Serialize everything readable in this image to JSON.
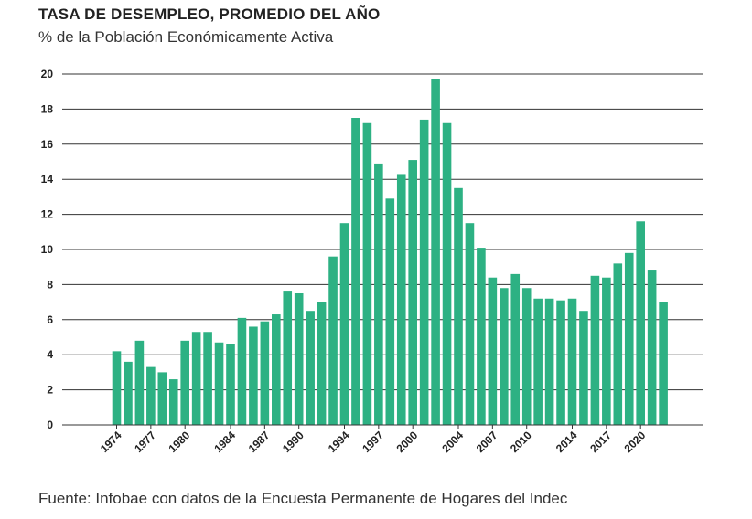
{
  "header": {
    "title": "TASA DE DESEMPLEO, PROMEDIO DEL AÑO",
    "subtitle": "% de la Población Económicamente Activa"
  },
  "footer": {
    "source": "Fuente: Infobae con datos de la Encuesta Permanente de Hogares del Indec"
  },
  "colors": {
    "bar": "#2db183",
    "grid": "#333333",
    "text": "#222222"
  },
  "chart_data": {
    "type": "bar",
    "title": "TASA DE DESEMPLEO, PROMEDIO DEL AÑO",
    "subtitle": "% de la Población Económicamente Activa",
    "xlabel": "",
    "ylabel": "",
    "ylim": [
      0,
      20
    ],
    "yticks": [
      "0",
      "2",
      "4",
      "6",
      "8",
      "10",
      "12",
      "14",
      "16",
      "18",
      "20"
    ],
    "grid": "horizontal",
    "categories": [
      1974,
      1975,
      1976,
      1977,
      1978,
      1979,
      1980,
      1981,
      1982,
      1983,
      1984,
      1985,
      1986,
      1987,
      1988,
      1989,
      1990,
      1991,
      1992,
      1993,
      1994,
      1995,
      1996,
      1997,
      1998,
      1999,
      2000,
      2001,
      2002,
      2003,
      2004,
      2005,
      2006,
      2007,
      2008,
      2009,
      2010,
      2011,
      2012,
      2013,
      2014,
      2015,
      2016,
      2017,
      2018,
      2019,
      2020,
      2021,
      2022
    ],
    "xtick_labels": [
      "1974",
      "1977",
      "1980",
      "1984",
      "1987",
      "1990",
      "1994",
      "1997",
      "2000",
      "2004",
      "2007",
      "2010",
      "2014",
      "2017",
      "2020"
    ],
    "values": [
      4.2,
      3.6,
      4.8,
      3.3,
      3.0,
      2.6,
      4.8,
      5.3,
      5.3,
      4.7,
      4.6,
      6.1,
      5.6,
      5.9,
      6.3,
      7.6,
      7.5,
      6.5,
      7.0,
      9.6,
      11.5,
      17.5,
      17.2,
      14.9,
      12.9,
      14.3,
      15.1,
      17.4,
      19.7,
      17.2,
      13.5,
      11.5,
      10.1,
      8.4,
      7.8,
      8.6,
      7.8,
      7.2,
      7.2,
      7.1,
      7.2,
      6.5,
      8.5,
      8.4,
      9.2,
      9.8,
      11.6,
      8.8,
      7.0
    ]
  }
}
